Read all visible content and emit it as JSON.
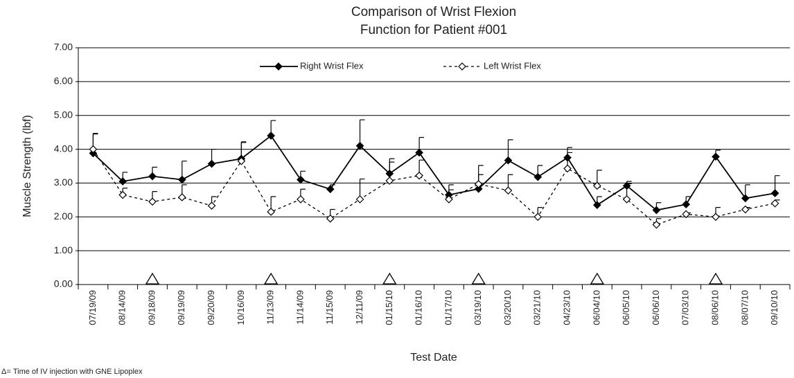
{
  "chart_data": {
    "type": "line",
    "title": [
      "Comparison of Wrist Flexion",
      "Function for Patient #001"
    ],
    "x_label": "Test Date",
    "y_label": "Muscle Strength (lbf)",
    "footnote": "Δ= Time of IV injection with GNE Lipoplex",
    "categories": [
      "07/19/09",
      "08/14/09",
      "09/18/09",
      "09/19/09",
      "09/20/09",
      "10/16/09",
      "11/13/09",
      "11/14/09",
      "11/15/09",
      "12/11/09",
      "01/15/10",
      "01/16/10",
      "01/17/10",
      "03/19/10",
      "03/20/10",
      "03/21/10",
      "04/23/10",
      "06/04/10",
      "06/05/10",
      "06/06/10",
      "07/03/10",
      "08/06/10",
      "08/07/10",
      "09/10/10"
    ],
    "injection_dates": [
      "09/18/09",
      "11/13/09",
      "01/15/10",
      "03/19/10",
      "06/04/10",
      "08/06/10"
    ],
    "series": [
      {
        "name": "Right Wrist Flex",
        "color": "#000000",
        "dashed": false,
        "filled": true,
        "values": [
          3.88,
          3.05,
          3.2,
          3.1,
          3.57,
          3.72,
          4.4,
          3.1,
          2.82,
          4.1,
          3.28,
          3.9,
          2.65,
          2.83,
          3.67,
          3.18,
          3.75,
          2.35,
          2.92,
          2.2,
          2.37,
          3.78,
          2.55,
          2.7
        ],
        "errors": [
          0.57,
          0.27,
          0.27,
          0.55,
          0.43,
          0.5,
          0.45,
          0.25,
          0.13,
          0.77,
          0.44,
          0.45,
          0.3,
          0.42,
          0.61,
          0.34,
          0.3,
          0.25,
          0.13,
          0.22,
          0.23,
          0.19,
          0.4,
          0.52
        ]
      },
      {
        "name": "Left Wrist Flex",
        "color": "#000000",
        "dashed": true,
        "filled": false,
        "values": [
          4.0,
          2.65,
          2.45,
          2.58,
          2.33,
          3.65,
          2.15,
          2.52,
          1.95,
          2.52,
          3.07,
          3.22,
          2.52,
          2.97,
          2.78,
          2.0,
          3.43,
          2.92,
          2.52,
          1.77,
          2.08,
          2.0,
          2.22,
          2.4
        ],
        "errors": [
          0.47,
          0.2,
          0.3,
          0.37,
          0.27,
          0.55,
          0.45,
          0.3,
          0.27,
          0.6,
          0.55,
          0.46,
          0.28,
          0.55,
          0.47,
          0.28,
          0.47,
          0.46,
          0.46,
          0.18,
          0.04,
          0.28,
          0.06,
          0.1
        ]
      }
    ],
    "ylim": [
      0,
      7
    ],
    "yticks": [
      {
        "value": 0,
        "label": "0.00"
      },
      {
        "value": 1,
        "label": "1.00"
      },
      {
        "value": 2,
        "label": "2.00"
      },
      {
        "value": 3,
        "label": "3.00"
      },
      {
        "value": 4,
        "label": "4.00"
      },
      {
        "value": 5,
        "label": "5.00"
      },
      {
        "value": 6,
        "label": "6.00"
      },
      {
        "value": 7,
        "label": "7.00"
      }
    ],
    "grid": true,
    "legend": "top"
  }
}
